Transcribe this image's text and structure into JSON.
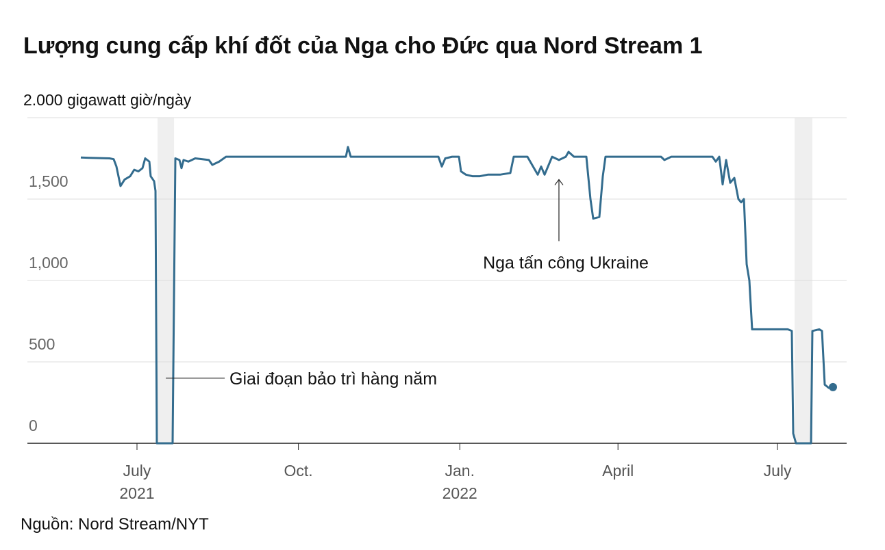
{
  "chart_data": {
    "type": "line",
    "title": "Lượng cung cấp khí đốt của Nga cho Đức qua Nord Stream 1",
    "source": "Nguồn: Nord Stream/NYT",
    "xlim": [
      2021.3249,
      2022.604
    ],
    "xticks": [
      {
        "value": 2021.496,
        "label": "July"
      },
      {
        "value": 2021.748,
        "label": "Oct."
      },
      {
        "value": 2022.0,
        "label": "Jan."
      },
      {
        "value": 2022.247,
        "label": "April"
      },
      {
        "value": 2022.496,
        "label": "July"
      }
    ],
    "xsublabels": [
      {
        "value": 2021.496,
        "label": "2021"
      },
      {
        "value": 2022.0,
        "label": "2022"
      }
    ],
    "ylim": [
      0,
      2000
    ],
    "yticks": [
      0,
      500,
      {
        "value": 1000,
        "label": "1,000"
      },
      {
        "value": 1500,
        "label": "1,500"
      },
      {
        "value": 2000,
        "label": "2.000 gigawatt giờ/ngày"
      }
    ],
    "grid": true,
    "shaded_x": [
      [
        2021.5281,
        2021.5538
      ],
      [
        2022.5227,
        2022.5505
      ]
    ],
    "annotations": [
      {
        "text": "Giai đoạn bảo trì hàng năm",
        "x": 2021.541,
        "y": 400
      },
      {
        "text": "Nga tấn công Ukraine",
        "x": 2022.1548,
        "y": 1620
      }
    ],
    "series": [
      {
        "color": "#336c8e",
        "x": [
          2021.4083,
          2021.4532,
          2021.4596,
          2021.4639,
          2021.4703,
          2021.4767,
          2021.4853,
          2021.4917,
          2021.4981,
          2021.5046,
          2021.5088,
          2021.5153,
          2021.5174,
          2021.5227,
          2021.5249,
          2021.527,
          2021.5516,
          2021.5559,
          2021.5623,
          2021.5655,
          2021.5687,
          2021.5762,
          2021.5869,
          2021.6083,
          2021.6136,
          2021.6243,
          2021.635,
          2021.6671,
          2021.7099,
          2021.7527,
          2021.7955,
          2021.8222,
          2021.8254,
          2021.8297,
          2021.881,
          2021.9666,
          2021.9719,
          2021.9773,
          2021.988,
          2021.9987,
          2022.0019,
          2022.0094,
          2022.0201,
          2022.0308,
          2022.0436,
          2022.0628,
          2022.0789,
          2022.0842,
          2022.1056,
          2022.1217,
          2022.127,
          2022.1324,
          2022.1441,
          2022.1548,
          2022.1655,
          2022.1698,
          2022.1783,
          2022.1976,
          2022.204,
          2022.2083,
          2022.2179,
          2022.2233,
          2022.2275,
          2022.234,
          2022.2874,
          2022.3142,
          2022.3195,
          2022.3302,
          2022.3944,
          2022.3997,
          2022.4051,
          2022.4104,
          2022.4158,
          2022.4222,
          2022.4286,
          2022.435,
          2022.4393,
          2022.4436,
          2022.4479,
          2022.4521,
          2022.4564,
          2022.512,
          2022.5184,
          2022.5206,
          2022.5249,
          2022.5484,
          2022.5505,
          2022.5612,
          2022.5655,
          2022.5698,
          2022.5762,
          2022.5826
        ],
        "values": [
          1755,
          1750,
          1745,
          1700,
          1580,
          1620,
          1640,
          1680,
          1670,
          1690,
          1750,
          1730,
          1640,
          1610,
          1550,
          0,
          0,
          1750,
          1740,
          1690,
          1740,
          1730,
          1750,
          1740,
          1710,
          1730,
          1760,
          1760,
          1760,
          1760,
          1760,
          1760,
          1820,
          1760,
          1760,
          1760,
          1700,
          1750,
          1760,
          1760,
          1670,
          1650,
          1640,
          1640,
          1650,
          1650,
          1660,
          1760,
          1760,
          1650,
          1700,
          1650,
          1760,
          1740,
          1760,
          1790,
          1760,
          1760,
          1500,
          1380,
          1390,
          1640,
          1760,
          1760,
          1760,
          1760,
          1740,
          1760,
          1760,
          1730,
          1760,
          1590,
          1740,
          1600,
          1630,
          1500,
          1480,
          1500,
          1100,
          1000,
          700,
          700,
          690,
          60,
          0,
          0,
          690,
          700,
          690,
          360,
          340,
          345
        ]
      }
    ]
  }
}
